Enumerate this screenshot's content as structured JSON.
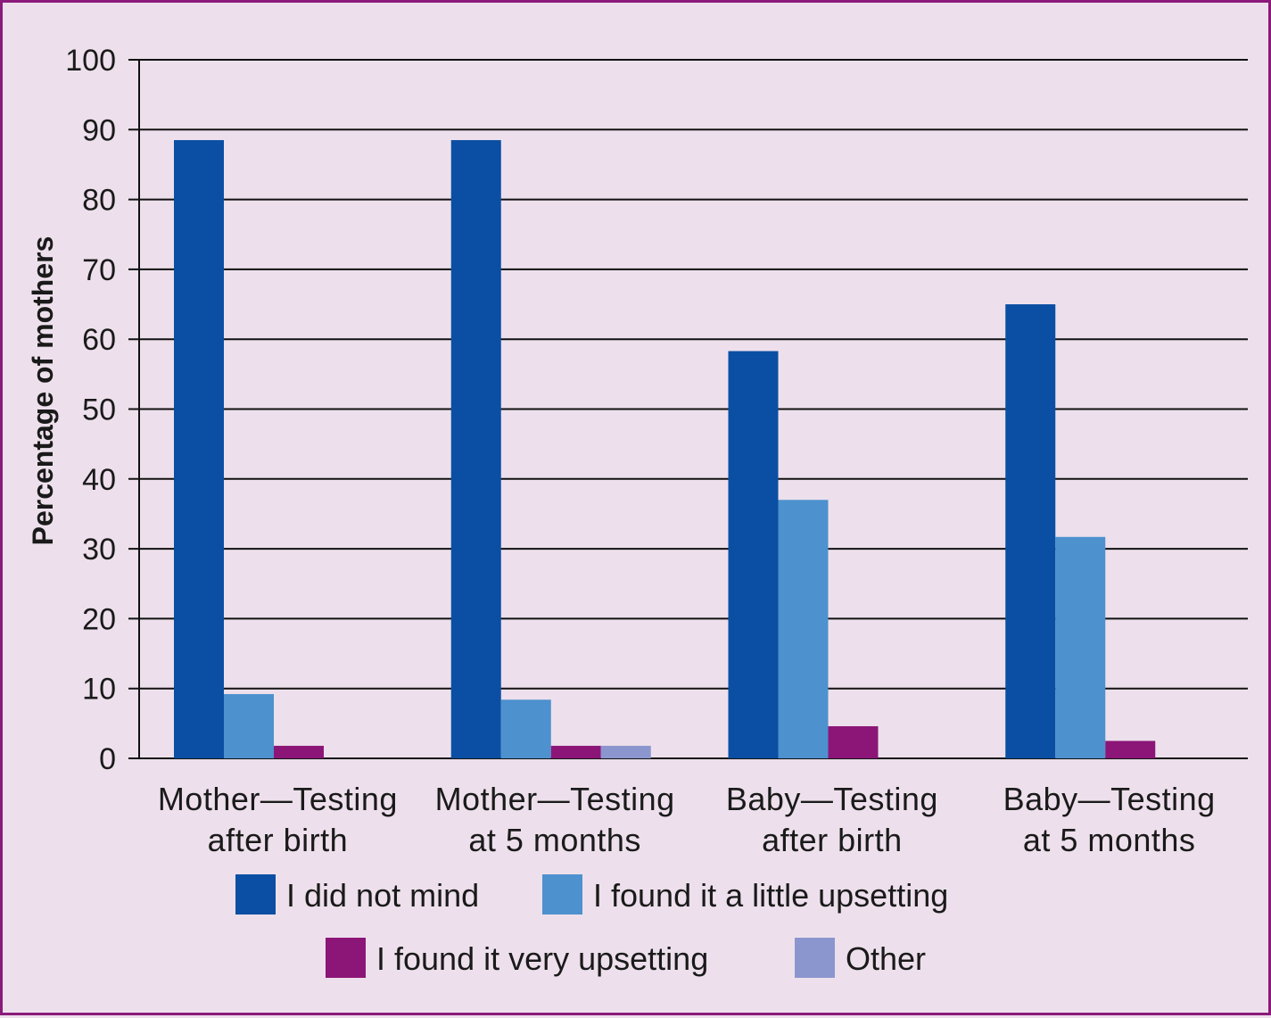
{
  "chart_data": {
    "type": "bar",
    "ylabel": "Percentage of mothers",
    "xlabel": "",
    "ylim": [
      0,
      100
    ],
    "yticks": [
      0,
      10,
      20,
      30,
      40,
      50,
      60,
      70,
      80,
      90,
      100
    ],
    "grid": true,
    "legend_position": "bottom",
    "categories": [
      [
        "Mother—Testing",
        "after birth"
      ],
      [
        "Mother—Testing",
        "at 5 months"
      ],
      [
        "Baby—Testing",
        "after birth"
      ],
      [
        "Baby—Testing",
        "at 5 months"
      ]
    ],
    "series": [
      {
        "name": "I did not mind",
        "color": "#0a4fa3",
        "values": [
          88.5,
          88.5,
          58.3,
          65
        ]
      },
      {
        "name": "I found it a little upsetting",
        "color": "#4d91ce",
        "values": [
          9.2,
          8.4,
          37,
          31.7
        ]
      },
      {
        "name": "I found it very upsetting",
        "color": "#8b1677",
        "values": [
          1.8,
          1.8,
          4.6,
          2.5
        ]
      },
      {
        "name": "Other",
        "color": "#8b96cf",
        "values": [
          0,
          1.8,
          0,
          0
        ]
      }
    ]
  }
}
